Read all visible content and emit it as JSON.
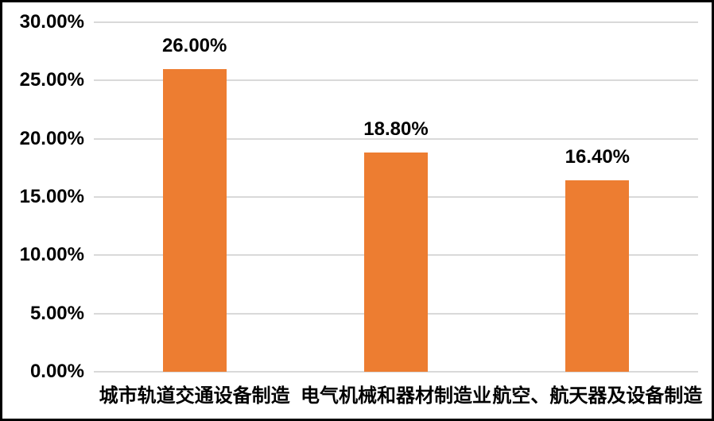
{
  "chart_data": {
    "type": "bar",
    "title": "",
    "xlabel": "",
    "ylabel": "",
    "categories": [
      "城市轨道交通设备制造",
      "电气机械和器材制造业",
      "航空、航天器及设备制造"
    ],
    "values": [
      26.0,
      18.8,
      16.4
    ],
    "data_labels": [
      "26.00%",
      "18.80%",
      "16.40%"
    ],
    "y_ticks": [
      {
        "value": 30,
        "label": "30.00%"
      },
      {
        "value": 25,
        "label": "25.00%"
      },
      {
        "value": 20,
        "label": "20.00%"
      },
      {
        "value": 15,
        "label": "15.00%"
      },
      {
        "value": 10,
        "label": "10.00%"
      },
      {
        "value": 5,
        "label": "5.00%"
      },
      {
        "value": 0,
        "label": "0.00%"
      }
    ],
    "ylim": [
      0,
      30
    ],
    "grid": true,
    "legend": false,
    "colors": {
      "bar": "#ED7D31",
      "gridline": "#D9D9D9",
      "text": "#000000",
      "border": "#000000",
      "background": "#FFFFFF"
    }
  }
}
